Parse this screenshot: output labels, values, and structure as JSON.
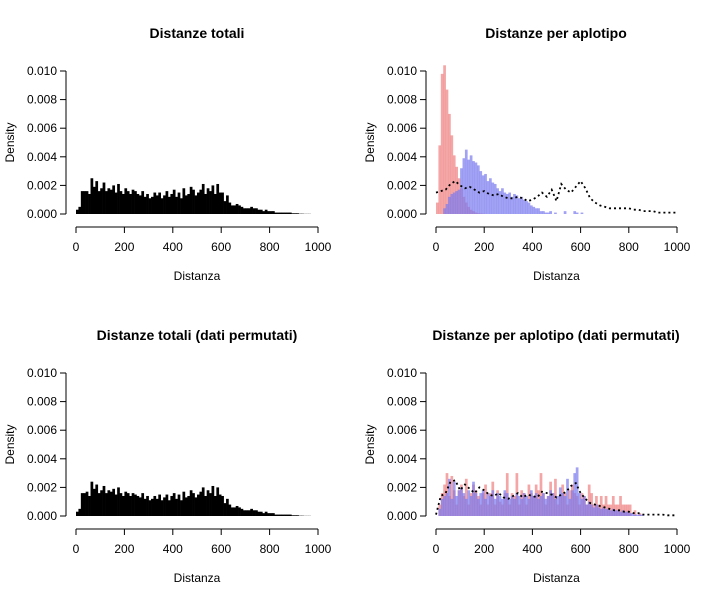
{
  "chart_data": [
    {
      "type": "bar",
      "title": "Distanze totali",
      "xlabel": "Distanza",
      "ylabel": "Density",
      "xlim": [
        0,
        1000
      ],
      "ylim": [
        0,
        0.01
      ],
      "xticks": [
        "0",
        "200",
        "400",
        "600",
        "800",
        "1000"
      ],
      "yticks": [
        "0.000",
        "0.002",
        "0.004",
        "0.006",
        "0.008",
        "0.010"
      ],
      "bin_width": 10,
      "bin_start": 0,
      "series": [
        {
          "color": "#000000",
          "values": [
            0.0003,
            0.0005,
            0.0016,
            0.0016,
            0.0016,
            0.0014,
            0.0025,
            0.0019,
            0.0023,
            0.0016,
            0.0018,
            0.0022,
            0.0016,
            0.0018,
            0.0017,
            0.002,
            0.0015,
            0.0021,
            0.0016,
            0.0014,
            0.0018,
            0.0016,
            0.0014,
            0.0017,
            0.0016,
            0.0014,
            0.0013,
            0.0016,
            0.0012,
            0.0014,
            0.0011,
            0.0012,
            0.0015,
            0.0013,
            0.0015,
            0.0011,
            0.0013,
            0.0016,
            0.0012,
            0.0014,
            0.0017,
            0.0012,
            0.0015,
            0.0011,
            0.0018,
            0.0013,
            0.0014,
            0.0019,
            0.0017,
            0.0013,
            0.0015,
            0.0017,
            0.0021,
            0.0014,
            0.0018,
            0.0016,
            0.002,
            0.0014,
            0.0021,
            0.0015,
            0.0015,
            0.0009,
            0.0013,
            0.0008,
            0.0006,
            0.0006,
            0.0007,
            0.0006,
            0.0005,
            0.0004,
            0.0004,
            0.0004,
            0.0005,
            0.0004,
            0.0004,
            0.0003,
            0.0003,
            0.0002,
            0.0003,
            0.0002,
            0.0002,
            0.0002,
            0.0001,
            0.0001,
            0.0001,
            0.0001,
            0.0001,
            0.0001,
            0.0001,
            5e-05,
            5e-05,
            5e-05,
            2e-05,
            2e-05,
            1e-05,
            1e-05,
            1e-05,
            0,
            0,
            0
          ]
        }
      ]
    },
    {
      "type": "bar",
      "title": "Distanze per aplotipo",
      "xlabel": "Distanza",
      "ylabel": "Density",
      "xlim": [
        0,
        1000
      ],
      "ylim": [
        0,
        0.01
      ],
      "xticks": [
        "0",
        "200",
        "400",
        "600",
        "800",
        "1000"
      ],
      "yticks": [
        "0.000",
        "0.002",
        "0.004",
        "0.006",
        "0.008",
        "0.010"
      ],
      "bin_width": 10,
      "bin_start": 0,
      "series": [
        {
          "color": "#f08080",
          "values": [
            0.0008,
            0.0048,
            0.0098,
            0.0104,
            0.0087,
            0.007,
            0.0055,
            0.0041,
            0.0033,
            0.0025,
            0.0018,
            0.0012,
            0.0008,
            0.0005,
            0.0003,
            0.0002,
            0.0001,
            5e-05,
            3e-05,
            2e-05
          ]
        },
        {
          "color": "#7b7bf0",
          "values": [
            0,
            0,
            0,
            0.0004,
            0.0007,
            0.0012,
            0.0014,
            0.0015,
            0.0016,
            0.0017,
            0.0032,
            0.0039,
            0.0045,
            0.0038,
            0.0041,
            0.0037,
            0.0036,
            0.0034,
            0.003,
            0.0027,
            0.0028,
            0.0023,
            0.0025,
            0.0022,
            0.0021,
            0.0018,
            0.0016,
            0.0018,
            0.0015,
            0.0014,
            0.0015,
            0.0012,
            0.0014,
            0.0013,
            0.0011,
            0.0012,
            0.001,
            0.0009,
            0.0008,
            0.0006,
            0.0005,
            0.0004,
            0.0004,
            0.0002,
            0.0002,
            0.0001,
            0.0001,
            0.0002,
            0,
            0.0001,
            0,
            0,
            0,
            0.0002,
            0,
            0,
            0,
            0.0002,
            0.0001,
            0,
            0.0001
          ]
        },
        {
          "color": "#000000",
          "style": "dotted",
          "x": [
            0,
            20,
            40,
            60,
            80,
            100,
            120,
            140,
            160,
            180,
            200,
            220,
            240,
            260,
            280,
            300,
            320,
            340,
            360,
            380,
            400,
            420,
            440,
            460,
            480,
            500,
            520,
            540,
            560,
            580,
            600,
            620,
            640,
            660,
            680,
            700,
            720,
            740,
            760,
            780,
            800,
            820,
            840,
            860,
            880,
            900,
            920,
            940,
            960,
            980,
            1000
          ],
          "y": [
            0.0015,
            0.0016,
            0.0017,
            0.0021,
            0.0023,
            0.002,
            0.0018,
            0.0019,
            0.0017,
            0.0015,
            0.0016,
            0.0014,
            0.0013,
            0.0014,
            0.0012,
            0.0011,
            0.0011,
            0.0012,
            0.0011,
            0.0009,
            0.001,
            0.0012,
            0.0015,
            0.0012,
            0.0017,
            0.0009,
            0.0021,
            0.0017,
            0.0015,
            0.0019,
            0.0023,
            0.0018,
            0.0011,
            0.0008,
            0.0006,
            0.0005,
            0.0004,
            0.0004,
            0.0004,
            0.0004,
            0.0004,
            0.0003,
            0.0003,
            0.0002,
            0.0002,
            0.0002,
            0.0001,
            0.0001,
            0.0001,
            0.0001,
            0.0001
          ]
        }
      ]
    },
    {
      "type": "bar",
      "title": "Distanze totali (dati permutati)",
      "xlabel": "Distanza",
      "ylabel": "Density",
      "xlim": [
        0,
        1000
      ],
      "ylim": [
        0,
        0.01
      ],
      "xticks": [
        "0",
        "200",
        "400",
        "600",
        "800",
        "1000"
      ],
      "yticks": [
        "0.000",
        "0.002",
        "0.004",
        "0.006",
        "0.008",
        "0.010"
      ],
      "bin_width": 10,
      "bin_start": 0,
      "series": [
        {
          "color": "#000000",
          "values": [
            0.0003,
            0.0005,
            0.0016,
            0.0016,
            0.0017,
            0.0014,
            0.0024,
            0.0019,
            0.0022,
            0.0016,
            0.0018,
            0.0021,
            0.0016,
            0.0018,
            0.0017,
            0.0019,
            0.0015,
            0.002,
            0.0016,
            0.0014,
            0.0017,
            0.0016,
            0.0014,
            0.0016,
            0.0015,
            0.0014,
            0.0013,
            0.0016,
            0.0012,
            0.0014,
            0.0011,
            0.0012,
            0.0014,
            0.0012,
            0.0015,
            0.0011,
            0.0013,
            0.0015,
            0.0011,
            0.0014,
            0.0016,
            0.0012,
            0.0015,
            0.0011,
            0.0017,
            0.0013,
            0.0014,
            0.0018,
            0.0016,
            0.0013,
            0.0015,
            0.0017,
            0.002,
            0.0014,
            0.0018,
            0.0016,
            0.0021,
            0.0014,
            0.002,
            0.0015,
            0.0014,
            0.0009,
            0.0012,
            0.0008,
            0.0006,
            0.0006,
            0.0007,
            0.0006,
            0.0005,
            0.0004,
            0.0004,
            0.0004,
            0.0005,
            0.0004,
            0.0004,
            0.0003,
            0.0003,
            0.0002,
            0.0003,
            0.0002,
            0.0002,
            0.0002,
            0.0001,
            0.0001,
            0.0001,
            0.0001,
            0.0001,
            0.0001,
            0.0001,
            5e-05,
            5e-05,
            5e-05,
            2e-05,
            2e-05,
            1e-05,
            1e-05,
            1e-05,
            0,
            0,
            0
          ]
        }
      ]
    },
    {
      "type": "bar",
      "title": "Distanze per aplotipo (dati permutati)",
      "xlabel": "Distanza",
      "ylabel": "Density",
      "xlim": [
        0,
        1000
      ],
      "ylim": [
        0,
        0.01
      ],
      "xticks": [
        "0",
        "200",
        "400",
        "600",
        "800",
        "1000"
      ],
      "yticks": [
        "0.000",
        "0.002",
        "0.004",
        "0.006",
        "0.008",
        "0.010"
      ],
      "bin_width": 10,
      "bin_start": 0,
      "series": [
        {
          "color": "#f08080",
          "values": [
            0,
            0.0008,
            0.0016,
            0.0022,
            0.003,
            0.0014,
            0.0028,
            0.0018,
            0.0008,
            0.0018,
            0.0022,
            0.0014,
            0.0026,
            0.0008,
            0.0016,
            0.0022,
            0.0018,
            0.0014,
            0.0008,
            0.0016,
            0.0022,
            0.0008,
            0.0016,
            0.0024,
            0.0008,
            0.0018,
            0.001,
            0.0008,
            0.0016,
            0.003,
            0.0008,
            0.0016,
            0.0014,
            0.003,
            0.0008,
            0.0018,
            0.0016,
            0.0008,
            0.0022,
            0.0016,
            0.0014,
            0.0022,
            0.0018,
            0.003,
            0.0016,
            0.0008,
            0.0014,
            0.0024,
            0.0016,
            0.0026,
            0.0008,
            0.0014,
            0.0022,
            0.0016,
            0.0008,
            0.0018,
            0.0022,
            0.0016,
            0.0014,
            0.0008,
            0.0016,
            0.0014,
            0.0008,
            0.0022,
            0.0016,
            0.0008,
            0.0014,
            0.0008,
            0.0014,
            0.0008,
            0.0014,
            0.0008,
            0.0008,
            0.0014,
            0.0008,
            0.0008,
            0.0014,
            0.0008,
            0.0008,
            0.0008,
            0.0008,
            0,
            0.0004,
            0,
            0.0002,
            0,
            0,
            0,
            0,
            0,
            0,
            0,
            0,
            0,
            0,
            0,
            0,
            0,
            0,
            0
          ]
        },
        {
          "color": "#7b7bf0",
          "values": [
            0,
            0.0005,
            0.0012,
            0.0014,
            0.0016,
            0.0026,
            0.0012,
            0.0024,
            0.0014,
            0.0018,
            0.002,
            0.0016,
            0.0012,
            0.0018,
            0.0014,
            0.0024,
            0.0016,
            0.0012,
            0.0016,
            0.0018,
            0.0012,
            0.0016,
            0.0014,
            0.0018,
            0.0012,
            0.0016,
            0.0014,
            0.0012,
            0.0018,
            0.0016,
            0.0012,
            0.0014,
            0.0012,
            0.0016,
            0.0014,
            0.0012,
            0.0016,
            0.0014,
            0.0012,
            0.0018,
            0.0014,
            0.0016,
            0.0012,
            0.0014,
            0.0016,
            0.0012,
            0.0014,
            0.0018,
            0.0016,
            0.0012,
            0.0014,
            0.002,
            0.0016,
            0.0014,
            0.0026,
            0.0012,
            0.0018,
            0.003,
            0.0034,
            0.0016,
            0.0012,
            0.0014,
            0.0008,
            0.001,
            0.0008,
            0.0006,
            0.0008,
            0.0006,
            0.0005,
            0.0006,
            0.0005,
            0.0005,
            0.0004,
            0.0005,
            0.0004,
            0.0004,
            0.0003,
            0.0004,
            0.0003,
            0.0003,
            0.0002,
            0.0002,
            0.0001,
            0.0001,
            0.0001,
            0.0001,
            0,
            0,
            0,
            0,
            0,
            0,
            0,
            0,
            0,
            0,
            0,
            0,
            0,
            0
          ]
        },
        {
          "color": "#000000",
          "style": "dotted",
          "x": [
            0,
            20,
            40,
            60,
            80,
            100,
            120,
            140,
            160,
            180,
            200,
            220,
            240,
            260,
            280,
            300,
            320,
            340,
            360,
            380,
            400,
            420,
            440,
            460,
            480,
            500,
            520,
            540,
            560,
            580,
            600,
            620,
            640,
            660,
            680,
            700,
            720,
            740,
            760,
            780,
            800,
            820,
            840,
            860,
            880,
            900,
            920,
            940,
            960,
            980,
            1000
          ],
          "y": [
            0.0001,
            0.0014,
            0.0016,
            0.0024,
            0.0025,
            0.0018,
            0.0022,
            0.0019,
            0.0016,
            0.002,
            0.0018,
            0.0015,
            0.0014,
            0.0016,
            0.0013,
            0.0012,
            0.0014,
            0.0016,
            0.0013,
            0.0015,
            0.0014,
            0.0013,
            0.0017,
            0.0016,
            0.0015,
            0.0013,
            0.0015,
            0.0017,
            0.0021,
            0.0023,
            0.0016,
            0.0012,
            0.0009,
            0.0008,
            0.0007,
            0.0006,
            0.0005,
            0.0004,
            0.0004,
            0.0003,
            0.0003,
            0.0002,
            0.0002,
            0.0001,
            0.0001,
            0.0001,
            0.0001,
            0.0001,
            5e-05,
            5e-05,
            5e-05
          ]
        }
      ]
    }
  ]
}
